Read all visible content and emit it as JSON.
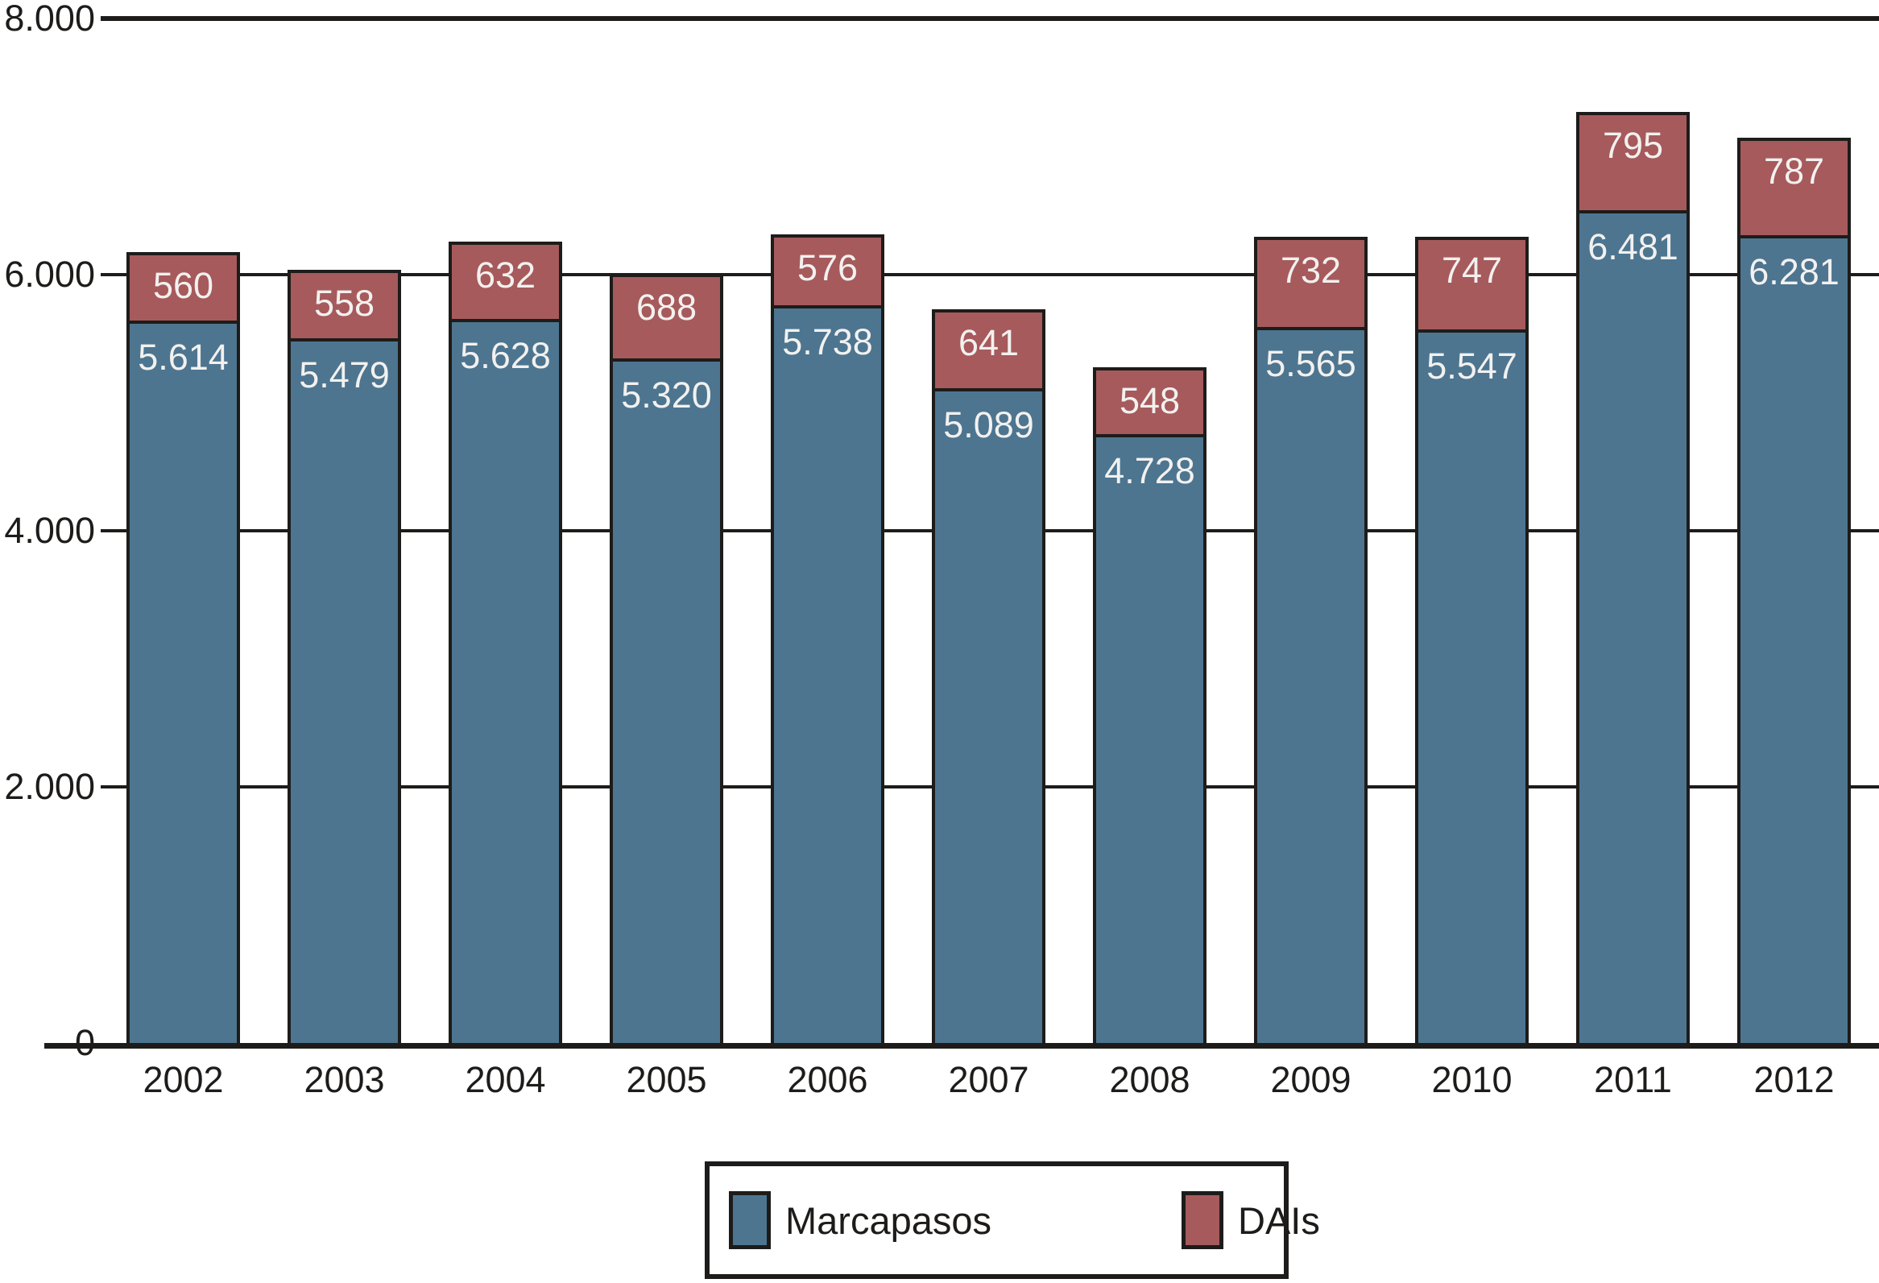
{
  "chart_data": {
    "type": "bar",
    "stacked": true,
    "title": "",
    "xlabel": "",
    "ylabel": "",
    "categories": [
      "2002",
      "2003",
      "2004",
      "2005",
      "2006",
      "2007",
      "2008",
      "2009",
      "2010",
      "2011",
      "2012"
    ],
    "series": [
      {
        "name": "Marcapasos",
        "color": "#4d7590",
        "values": [
          5614,
          5479,
          5628,
          5320,
          5738,
          5089,
          4728,
          5565,
          5547,
          6481,
          6281
        ],
        "labels": [
          "5.614",
          "5.479",
          "5.628",
          "5.320",
          "5.738",
          "5.089",
          "4.728",
          "5.565",
          "5.547",
          "6.481",
          "6.281"
        ]
      },
      {
        "name": "DAIs",
        "color": "#a65a5c",
        "values": [
          560,
          558,
          632,
          688,
          576,
          641,
          548,
          732,
          747,
          795,
          787
        ],
        "labels": [
          "560",
          "558",
          "632",
          "688",
          "576",
          "641",
          "548",
          "732",
          "747",
          "795",
          "787"
        ]
      }
    ],
    "ylim": [
      0,
      8000
    ],
    "yticks": [
      {
        "value": 0,
        "label": "0"
      },
      {
        "value": 2000,
        "label": "2.000"
      },
      {
        "value": 4000,
        "label": "4.000"
      },
      {
        "value": 6000,
        "label": "6.000"
      },
      {
        "value": 8000,
        "label": "8.000"
      }
    ],
    "grid": true,
    "legend_position": "bottom",
    "colors": {
      "ink": "#1d1c1a",
      "value_label_text": "#f2f1ef",
      "background": "#ffffff"
    }
  }
}
